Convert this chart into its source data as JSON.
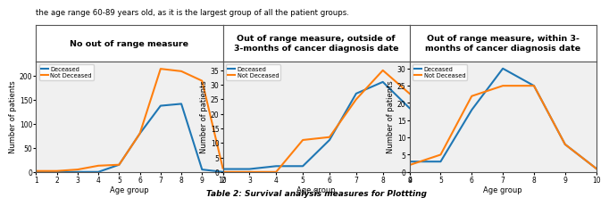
{
  "panel1": {
    "title": "No out of range measure",
    "deceased_x": [
      1,
      2,
      3,
      4,
      5,
      6,
      7,
      8,
      9,
      10
    ],
    "deceased_y": [
      0,
      0,
      0,
      0,
      15,
      80,
      138,
      142,
      5,
      0
    ],
    "not_deceased_x": [
      1,
      2,
      3,
      4,
      5,
      6,
      7,
      8,
      9,
      10
    ],
    "not_deceased_y": [
      2,
      2,
      5,
      13,
      15,
      80,
      215,
      210,
      190,
      8
    ],
    "ylim": [
      0,
      230
    ],
    "yticks": [
      0,
      50,
      100,
      150,
      200
    ],
    "xticks": [
      1,
      2,
      3,
      4,
      5,
      6,
      7,
      8,
      9,
      10
    ]
  },
  "panel2": {
    "title": "Out of range measure, outside of\n3-months of cancer diagnosis date",
    "deceased_x": [
      2,
      3,
      4,
      5,
      6,
      7,
      8,
      9
    ],
    "deceased_y": [
      1,
      1,
      2,
      2,
      11,
      27,
      31,
      22
    ],
    "not_deceased_x": [
      2,
      3,
      4,
      5,
      6,
      7,
      8,
      9
    ],
    "not_deceased_y": [
      0,
      0,
      0,
      11,
      12,
      25,
      35,
      27
    ],
    "ylim": [
      0,
      38
    ],
    "yticks": [
      0,
      5,
      10,
      15,
      20,
      25,
      30,
      35
    ],
    "xticks": [
      2,
      3,
      4,
      5,
      6,
      7,
      8,
      9
    ]
  },
  "panel3": {
    "title": "Out of range measure, within 3-\nmonths of cancer diagnosis date",
    "deceased_x": [
      4,
      5,
      6,
      7,
      8,
      9,
      10
    ],
    "deceased_y": [
      3,
      3,
      18,
      30,
      25,
      8,
      1
    ],
    "not_deceased_x": [
      4,
      5,
      6,
      7,
      8,
      9,
      10
    ],
    "not_deceased_y": [
      2,
      5,
      22,
      25,
      25,
      8,
      1
    ],
    "ylim": [
      0,
      32
    ],
    "yticks": [
      0,
      5,
      10,
      15,
      20,
      25,
      30
    ],
    "xticks": [
      4,
      5,
      6,
      7,
      8,
      9,
      10
    ]
  },
  "deceased_color": "#1f77b4",
  "not_deceased_color": "#ff7f0e",
  "ylabel": "Number of patients",
  "xlabel": "Age group",
  "top_text": "the age range 60-89 years old, as it is the largest group of all the patient groups.",
  "bottom_text": "Table 2: Survival analysis measures for Plottting",
  "legend_labels": [
    "Deceased",
    "Not Deceased"
  ],
  "plot_bg": "#f0f0f0",
  "linewidth": 1.5,
  "border_color": "#555555"
}
